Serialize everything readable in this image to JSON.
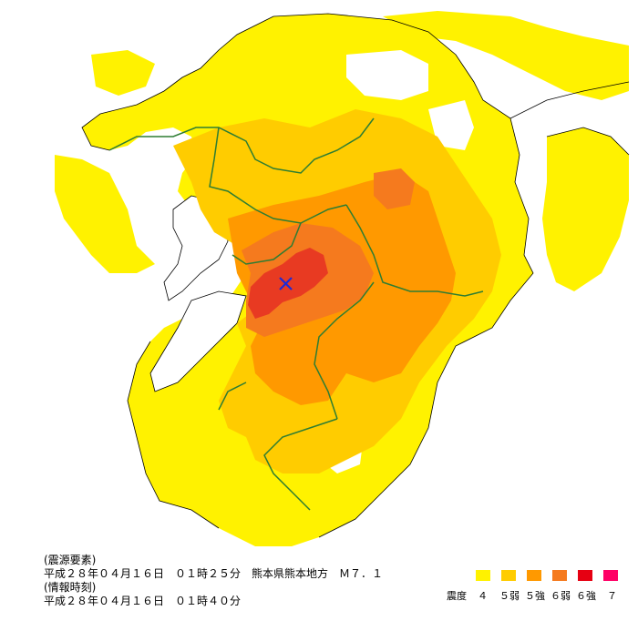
{
  "colors": {
    "shindo4": "#FFF200",
    "shindo5lower": "#FFCC00",
    "shindo5upper": "#FF9900",
    "shindo6lower": "#F57A1E",
    "shindo6upper": "#E60012",
    "shindo7": "#FF0066",
    "core": "#E83A22",
    "epicenter": "#1E2BD6",
    "prefecture_border": "#2E7D32",
    "coastline": "#000000"
  },
  "epicenter": {
    "icon": "x-mark-icon"
  },
  "info": {
    "source_heading": "(震源要素)",
    "source_line": "平成２８年０４月１６日　０１時２５分　熊本県熊本地方　Ｍ７．１",
    "time_heading": "(情報時刻)",
    "time_line": "平成２８年０４月１６日　０１時４０分"
  },
  "legend": {
    "title": "震度",
    "items": [
      {
        "label": "４",
        "color": "#FFF200"
      },
      {
        "label": "５弱",
        "color": "#FFCC00"
      },
      {
        "label": "５強",
        "color": "#FF9900"
      },
      {
        "label": "６弱",
        "color": "#F57A1E"
      },
      {
        "label": "６強",
        "color": "#E60012"
      },
      {
        "label": "７",
        "color": "#FF0066"
      }
    ]
  }
}
